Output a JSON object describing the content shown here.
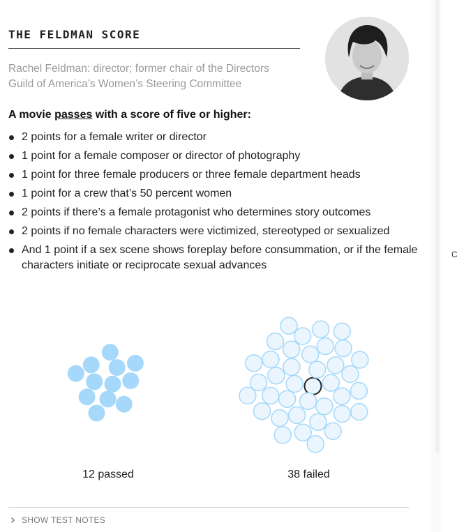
{
  "header": {
    "title": "THE FELDMAN SCORE",
    "person_line1": "Rachel Feldman: director; former chair of the Directors",
    "person_line2": "Guild of America’s Women’s Steering Committee"
  },
  "rules": {
    "heading_pre": "A movie ",
    "heading_link": "passes",
    "heading_post": " with a score of five or higher:",
    "items": [
      {
        "text": "2 points for a female writer or director"
      },
      {
        "text": "1 point for a female composer or director of photography"
      },
      {
        "text": "1 point for three female producers or three female department heads"
      },
      {
        "text": "1 point for a crew that’s 50 percent women"
      },
      {
        "text": "2 points if there’s a female protagonist who determines story outcomes"
      },
      {
        "text": "2 points if no female characters were victimized, stereotyped or sexualized"
      },
      {
        "text": "And 1 point if a sex scene shows foreplay before consummation, or if the female characters initiate or reciprocate sexual advances"
      }
    ]
  },
  "results": {
    "passed_count": 12,
    "failed_count": 38,
    "passed_label": "12 passed",
    "failed_label": "38 failed",
    "colors": {
      "passed_fill": "#a5d8fa",
      "failed_fill": "#eaf5fd",
      "failed_stroke": "#a5d8fa",
      "highlight_stroke": "#222222"
    }
  },
  "footer": {
    "toggle_label": "SHOW TEST NOTES",
    "toggle_icon": "chevron-right-icon"
  }
}
